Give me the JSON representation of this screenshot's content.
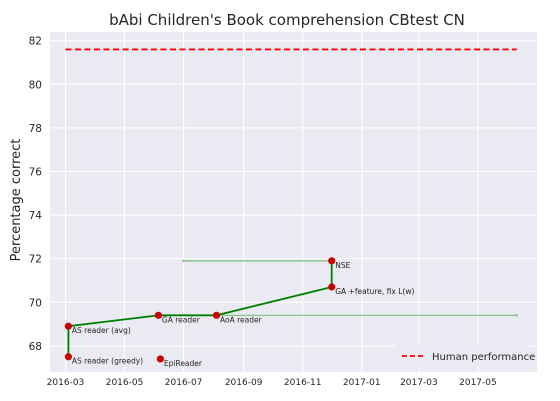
{
  "chart_data": {
    "type": "line",
    "title": "bAbi Children's Book comprehension CBtest CN",
    "xlabel": "",
    "ylabel": "Percentage correct",
    "xlim": [
      "2016-02-14",
      "2017-07-01"
    ],
    "ylim": [
      66.8,
      82.4
    ],
    "y_ticks": [
      68,
      70,
      72,
      74,
      76,
      78,
      80,
      82
    ],
    "x_ticks": [
      "2016-03",
      "2016-05",
      "2016-07",
      "2016-09",
      "2016-11",
      "2017-01",
      "2017-03",
      "2017-05"
    ],
    "grid": true,
    "legend_position": "bottom-right",
    "colors": {
      "background": "#eaeaf2",
      "grid": "#ffffff",
      "frontier": "#008000",
      "points": "#cc0000",
      "human": "#ff0000",
      "range_lines": "#7fbf7f"
    },
    "human_performance": {
      "name": "Human performance",
      "value": 81.6,
      "x_start": "2016-03-01",
      "x_end": "2017-06-10"
    },
    "points": [
      {
        "label": "AS reader (greedy)",
        "x": "2016-03-04",
        "y": 67.5
      },
      {
        "label": "AS reader (avg)",
        "x": "2016-03-04",
        "y": 68.9
      },
      {
        "label": "EpiReader",
        "x": "2016-06-07",
        "y": 67.4
      },
      {
        "label": "GA reader",
        "x": "2016-06-05",
        "y": 69.4
      },
      {
        "label": "AoA reader",
        "x": "2016-08-04",
        "y": 69.4
      },
      {
        "label": "GA +feature, fix L(w)",
        "x": "2016-12-01",
        "y": 70.7
      },
      {
        "label": "NSE",
        "x": "2016-12-01",
        "y": 71.9
      }
    ],
    "frontier": [
      {
        "x": "2016-03-04",
        "y": 67.5
      },
      {
        "x": "2016-03-04",
        "y": 68.9
      },
      {
        "x": "2016-06-05",
        "y": 69.4
      },
      {
        "x": "2016-08-04",
        "y": 69.4
      },
      {
        "x": "2016-12-01",
        "y": 70.7
      },
      {
        "x": "2016-12-01",
        "y": 71.9
      }
    ],
    "range_lines": [
      {
        "x_start": "2016-07-01",
        "x_end": "2016-12-01",
        "y": 71.9
      },
      {
        "x_start": "2016-08-04",
        "x_end": "2017-06-10",
        "y": 69.4
      }
    ]
  }
}
